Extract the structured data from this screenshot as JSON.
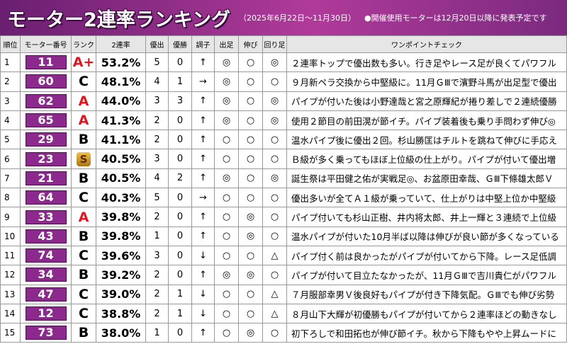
{
  "header": {
    "title": "モーター2連率ランキング",
    "period": "（2025年6月22日～11月30日）",
    "note": "●開催使用モーターは12月20日以降に発表予定です"
  },
  "table": {
    "header": [
      "順位",
      "モーター番号",
      "ランク",
      "2連率",
      "優出",
      "優勝",
      "調子",
      "出足",
      "伸び",
      "回り足",
      "ワンポイントチェック"
    ],
    "rows": [
      [
        "1",
        "11",
        "A+",
        "53.2%",
        "5",
        "0",
        "↑",
        "◎",
        "○",
        "◎",
        "２連率トップで優出数も多い。行き足やレース足が良くてパワフル"
      ],
      [
        "2",
        "60",
        "C",
        "48.1%",
        "4",
        "1",
        "→",
        "◎",
        "○",
        "○",
        "９月新ペラ交換から中堅級に。11月ＧⅢで濱野斗馬が出足型で優出"
      ],
      [
        "3",
        "62",
        "A",
        "44.0%",
        "3",
        "3",
        "↑",
        "◎",
        "○",
        "◎",
        "パイプが付いた後は小野達哉と宮之原輝紀が捲り差しで２連続優勝"
      ],
      [
        "4",
        "65",
        "A",
        "41.3%",
        "2",
        "0",
        "↑",
        "◎",
        "○",
        "◎",
        "使用２節目の前田滉が節イチ。パイプ装着後も乗り手問わず伸び◎"
      ],
      [
        "5",
        "29",
        "B",
        "41.1%",
        "2",
        "0",
        "↑",
        "○",
        "○",
        "○",
        "温水パイプ後に優出２回。杉山勝匡はチルトを跳ねて伸びに手応え"
      ],
      [
        "6",
        "23",
        "S",
        "40.5%",
        "3",
        "0",
        "↑",
        "○",
        "○",
        "○",
        "Ｂ級が多く乗ってもほぼ上位級の仕上がり。パイプが付いて優出増"
      ],
      [
        "7",
        "21",
        "B",
        "40.5%",
        "4",
        "2",
        "↑",
        "◎",
        "○",
        "◎",
        "誕生祭は平田健之佑が実戦足◎、お盆原田幸哉、ＧⅢ下條雄太郎Ｖ"
      ],
      [
        "8",
        "64",
        "C",
        "40.3%",
        "5",
        "0",
        "→",
        "○",
        "○",
        "○",
        "優出多いが全てＡ１級が乗っていて、仕上がりは中堅上位か中堅級"
      ],
      [
        "9",
        "33",
        "A",
        "39.8%",
        "2",
        "0",
        "↑",
        "○",
        "◎",
        "○",
        "パイプ付いても杉山正樹、井内将太郎、井上一輝と３連続で上位級"
      ],
      [
        "10",
        "43",
        "B",
        "39.8%",
        "1",
        "0",
        "↑",
        "○",
        "◎",
        "○",
        "温水パイプが付いた10月半ば以降は伸びが良い節が多くなっている"
      ],
      [
        "11",
        "74",
        "C",
        "39.6%",
        "3",
        "0",
        "↓",
        "○",
        "○",
        "△",
        "パイプ付く前は良かったがパイプが付いてから下降。レース足低調"
      ],
      [
        "12",
        "34",
        "B",
        "39.2%",
        "2",
        "0",
        "↑",
        "◎",
        "◎",
        "○",
        "パイプが付いて目立たなかったが、11月ＧⅢで吉川貴仁がパワフル"
      ],
      [
        "13",
        "47",
        "C",
        "39.0%",
        "2",
        "1",
        "↓",
        "○",
        "○",
        "△",
        "７月服部幸男Ｖ後良好もパイプが付き下降気配。ＧⅢでも伸び劣勢"
      ],
      [
        "14",
        "12",
        "C",
        "38.8%",
        "2",
        "1",
        "↓",
        "○",
        "○",
        "△",
        "８月山下大輝が初優勝もパイプが付いてから２連率ほどの動きなし"
      ],
      [
        "15",
        "73",
        "B",
        "38.0%",
        "1",
        "0",
        "↑",
        "○",
        "◎",
        "○",
        "初下ろしで和田拓也が伸び節イチ。秋から下降もやや上昇ムードに"
      ]
    ]
  }
}
